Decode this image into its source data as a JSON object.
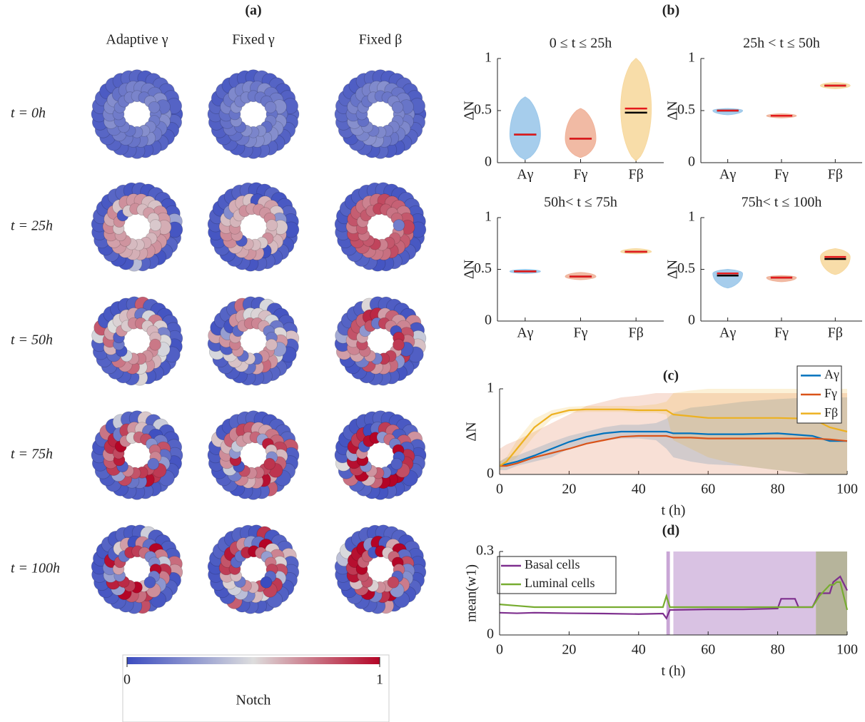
{
  "panel_a": {
    "label": "(a)",
    "columns": [
      "Adaptive γ",
      "Fixed γ",
      "Fixed β"
    ],
    "rows": [
      "t = 0h",
      "t = 25h",
      "t = 50h",
      "t = 75h",
      "t = 100h"
    ],
    "colorbar": {
      "ticks": [
        0,
        1
      ],
      "label": "Notch"
    }
  },
  "chart_data": [
    {
      "type": "violin",
      "panel_label": "(b)",
      "title": "0 ≤ t ≤ 25h",
      "ylabel": "ΔN",
      "categories": [
        "Aγ",
        "Fγ",
        "Fβ"
      ],
      "colors": [
        "#9cc8ea",
        "#f0b39a",
        "#f7d9a0"
      ],
      "means": [
        0.27,
        0.23,
        0.52
      ],
      "medians": [
        0.27,
        0.23,
        0.48
      ],
      "ranges": [
        [
          0.03,
          0.63
        ],
        [
          0.05,
          0.52
        ],
        [
          0.02,
          1.0
        ]
      ],
      "ylim": [
        0,
        1
      ],
      "yticks": [
        0,
        0.5,
        1
      ]
    },
    {
      "type": "violin",
      "title": "25h < t ≤ 50h",
      "ylabel": "ΔN",
      "categories": [
        "Aγ",
        "Fγ",
        "Fβ"
      ],
      "colors": [
        "#9cc8ea",
        "#f0b39a",
        "#f7d9a0"
      ],
      "means": [
        0.5,
        0.45,
        0.74
      ],
      "medians": [
        0.5,
        0.45,
        0.74
      ],
      "ranges": [
        [
          0.46,
          0.52
        ],
        [
          0.43,
          0.47
        ],
        [
          0.71,
          0.77
        ]
      ],
      "ylim": [
        0,
        1
      ],
      "yticks": [
        0,
        0.5,
        1
      ]
    },
    {
      "type": "violin",
      "title": "50h< t ≤ 75h",
      "ylabel": "ΔN",
      "categories": [
        "Aγ",
        "Fγ",
        "Fβ"
      ],
      "colors": [
        "#9cc8ea",
        "#f0b39a",
        "#f7d9a0"
      ],
      "means": [
        0.48,
        0.43,
        0.67
      ],
      "medians": [
        0.48,
        0.43,
        0.67
      ],
      "ranges": [
        [
          0.46,
          0.5
        ],
        [
          0.4,
          0.47
        ],
        [
          0.65,
          0.7
        ]
      ],
      "ylim": [
        0,
        1
      ],
      "yticks": [
        0,
        0.5,
        1
      ]
    },
    {
      "type": "violin",
      "title": "75h< t ≤ 100h",
      "ylabel": "ΔN",
      "categories": [
        "Aγ",
        "Fγ",
        "Fβ"
      ],
      "colors": [
        "#9cc8ea",
        "#f0b39a",
        "#f7d9a0"
      ],
      "means": [
        0.46,
        0.42,
        0.62
      ],
      "medians": [
        0.44,
        0.42,
        0.6
      ],
      "ranges": [
        [
          0.32,
          0.5
        ],
        [
          0.38,
          0.44
        ],
        [
          0.45,
          0.7
        ]
      ],
      "ylim": [
        0,
        1
      ],
      "yticks": [
        0,
        0.5,
        1
      ]
    },
    {
      "type": "line",
      "panel_label": "(c)",
      "xlabel": "t (h)",
      "ylabel": "ΔN",
      "x": [
        0,
        2,
        5,
        10,
        15,
        20,
        25,
        30,
        35,
        40,
        45,
        48,
        50,
        55,
        60,
        70,
        80,
        90,
        95,
        100
      ],
      "series": [
        {
          "name": "Aγ",
          "color": "#0072bd",
          "values": [
            0.1,
            0.12,
            0.15,
            0.22,
            0.3,
            0.38,
            0.44,
            0.48,
            0.5,
            0.5,
            0.5,
            0.5,
            0.48,
            0.48,
            0.47,
            0.47,
            0.48,
            0.45,
            0.39,
            0.39
          ],
          "lower": [
            0.05,
            0.05,
            0.1,
            0.15,
            0.2,
            0.3,
            0.36,
            0.4,
            0.42,
            0.42,
            0.4,
            0.3,
            0.2,
            0.15,
            0.12,
            0.1,
            0.05,
            0.0,
            0.0,
            0.0
          ],
          "upper": [
            0.15,
            0.2,
            0.22,
            0.3,
            0.38,
            0.45,
            0.5,
            0.55,
            0.58,
            0.58,
            0.6,
            0.65,
            0.72,
            0.78,
            0.8,
            0.85,
            0.88,
            0.9,
            0.9,
            0.9
          ]
        },
        {
          "name": "Fγ",
          "color": "#d95319",
          "values": [
            0.1,
            0.1,
            0.13,
            0.2,
            0.25,
            0.3,
            0.36,
            0.4,
            0.44,
            0.45,
            0.45,
            0.45,
            0.43,
            0.43,
            0.42,
            0.42,
            0.42,
            0.42,
            0.41,
            0.39
          ],
          "lower": [
            0.0,
            0.0,
            0.0,
            0.0,
            0.0,
            0.0,
            0.0,
            0.0,
            0.0,
            0.0,
            0.0,
            0.0,
            0.0,
            0.0,
            0.0,
            0.0,
            0.0,
            0.0,
            0.0,
            0.0
          ],
          "upper": [
            0.3,
            0.35,
            0.4,
            0.5,
            0.6,
            0.7,
            0.8,
            0.85,
            0.9,
            0.92,
            0.95,
            0.95,
            0.95,
            0.95,
            0.95,
            0.95,
            0.95,
            0.95,
            0.95,
            0.95
          ]
        },
        {
          "name": "Fβ",
          "color": "#edb120",
          "values": [
            0.1,
            0.15,
            0.3,
            0.55,
            0.7,
            0.75,
            0.76,
            0.76,
            0.76,
            0.75,
            0.75,
            0.75,
            0.7,
            0.68,
            0.66,
            0.66,
            0.66,
            0.65,
            0.55,
            0.5
          ],
          "lower": [
            0.05,
            0.1,
            0.2,
            0.45,
            0.65,
            0.72,
            0.73,
            0.73,
            0.73,
            0.72,
            0.72,
            0.7,
            0.4,
            0.3,
            0.2,
            0.1,
            0.05,
            0.0,
            0.0,
            0.0
          ],
          "upper": [
            0.15,
            0.2,
            0.4,
            0.65,
            0.75,
            0.79,
            0.8,
            0.8,
            0.8,
            0.8,
            0.82,
            0.85,
            0.95,
            0.98,
            1.0,
            1.0,
            1.0,
            1.0,
            1.0,
            1.0
          ]
        }
      ],
      "xlim": [
        0,
        100
      ],
      "xticks": [
        0,
        20,
        40,
        60,
        80,
        100
      ],
      "ylim": [
        0,
        1
      ],
      "yticks": [
        0,
        1
      ]
    },
    {
      "type": "line",
      "panel_label": "(d)",
      "xlabel": "t (h)",
      "ylabel": "mean(w1)",
      "x": [
        0,
        5,
        10,
        20,
        30,
        40,
        47,
        48,
        49,
        50,
        60,
        70,
        80,
        81,
        85,
        86,
        90,
        92,
        95,
        96,
        97,
        98,
        100
      ],
      "series": [
        {
          "name": "Basal cells",
          "color": "#7e2f8e",
          "values": [
            0.08,
            0.078,
            0.08,
            0.078,
            0.077,
            0.075,
            0.077,
            0.06,
            0.09,
            0.09,
            0.092,
            0.092,
            0.095,
            0.13,
            0.13,
            0.1,
            0.1,
            0.15,
            0.15,
            0.19,
            0.2,
            0.21,
            0.16
          ]
        },
        {
          "name": "Luminal cells",
          "color": "#77ac30",
          "values": [
            0.11,
            0.105,
            0.1,
            0.1,
            0.1,
            0.1,
            0.1,
            0.14,
            0.1,
            0.1,
            0.1,
            0.1,
            0.1,
            0.1,
            0.1,
            0.1,
            0.1,
            0.14,
            0.18,
            0.18,
            0.19,
            0.19,
            0.09
          ]
        }
      ],
      "shaded_regions": [
        {
          "x": [
            48,
            49
          ],
          "color": "#c9a6d6"
        },
        {
          "x": [
            50,
            91
          ],
          "color": "#d9c2e3"
        },
        {
          "x": [
            91,
            100
          ],
          "color": "#b6b49b"
        }
      ],
      "xlim": [
        0,
        100
      ],
      "xticks": [
        0,
        20,
        40,
        60,
        80,
        100
      ],
      "ylim": [
        0,
        0.3
      ],
      "yticks": [
        0,
        0.3
      ]
    }
  ]
}
